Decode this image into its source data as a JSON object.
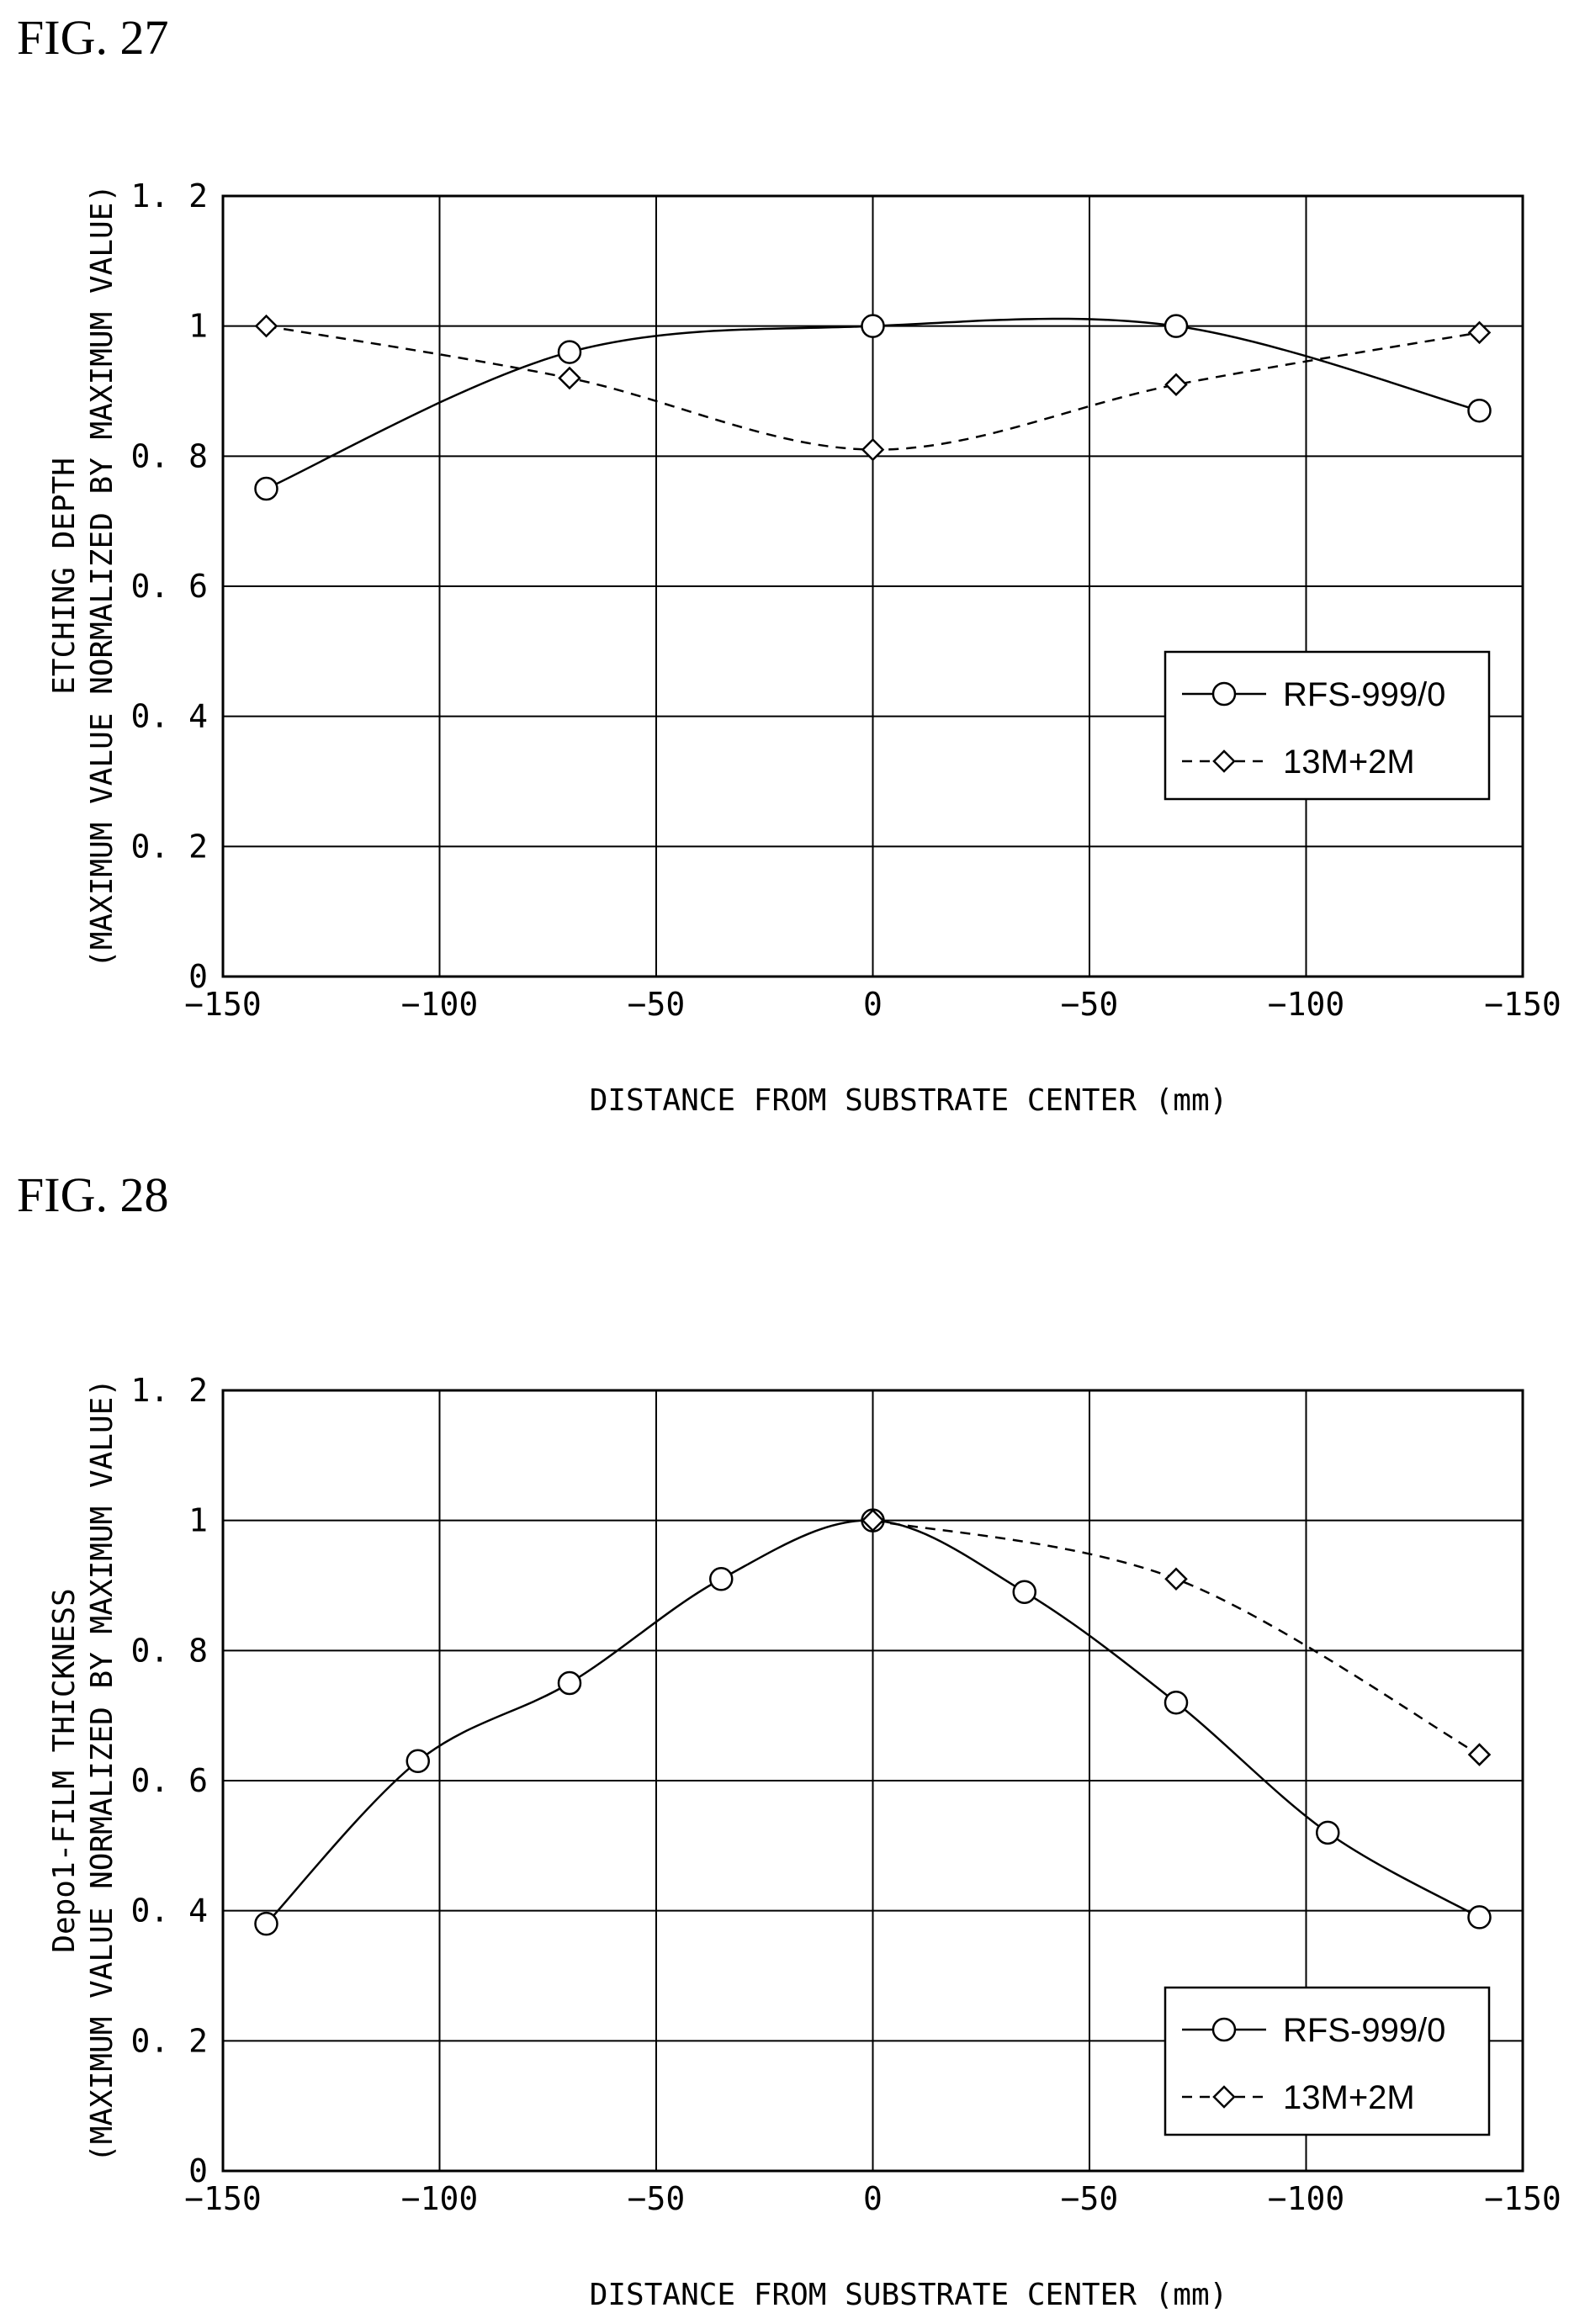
{
  "figures": [
    {
      "fig_label": "FIG. 27",
      "ylabel_line1": "ETCHING DEPTH",
      "ylabel_line2": "(MAXIMUM VALUE NORMALIZED BY MAXIMUM VALUE)",
      "xlabel": "DISTANCE FROM SUBSTRATE CENTER (mm)"
    },
    {
      "fig_label": "FIG. 28",
      "ylabel_line1": "Depo1-FILM THICKNESS",
      "ylabel_line2": "(MAXIMUM VALUE NORMALIZED BY MAXIMUM VALUE)",
      "xlabel": "DISTANCE FROM SUBSTRATE CENTER (mm)"
    }
  ],
  "chart_data": [
    {
      "type": "line",
      "xlabel": "DISTANCE FROM SUBSTRATE CENTER (mm)",
      "ylabel": "ETCHING DEPTH (MAXIMUM VALUE NORMALIZED BY MAXIMUM VALUE)",
      "x_tick_labels": [
        "−150",
        "−100",
        "−50",
        "0",
        "−50",
        "−100",
        "−150"
      ],
      "y_tick_labels": [
        "0",
        "0. 2",
        "0. 4",
        "0. 6",
        "0. 8",
        "1",
        "1. 2"
      ],
      "ylim": [
        0,
        1.2
      ],
      "grid": true,
      "legend_position": "center-right",
      "series": [
        {
          "name": "RFS-999/0",
          "marker": "circle",
          "line_style": "solid",
          "points": [
            [
              -140,
              0.75
            ],
            [
              -70,
              0.96
            ],
            [
              0,
              1.0
            ],
            [
              70,
              1.0
            ],
            [
              140,
              0.87
            ]
          ]
        },
        {
          "name": "13M+2M",
          "marker": "diamond",
          "line_style": "dashed",
          "points": [
            [
              -140,
              1.0
            ],
            [
              -70,
              0.92
            ],
            [
              0,
              0.81
            ],
            [
              70,
              0.91
            ],
            [
              140,
              0.99
            ]
          ]
        }
      ]
    },
    {
      "type": "line",
      "xlabel": "DISTANCE FROM SUBSTRATE CENTER (mm)",
      "ylabel": "Depo1-FILM THICKNESS (MAXIMUM VALUE NORMALIZED BY MAXIMUM VALUE)",
      "x_tick_labels": [
        "−150",
        "−100",
        "−50",
        "0",
        "−50",
        "−100",
        "−150"
      ],
      "y_tick_labels": [
        "0",
        "0. 2",
        "0. 4",
        "0. 6",
        "0. 8",
        "1",
        "1. 2"
      ],
      "ylim": [
        0,
        1.2
      ],
      "grid": true,
      "legend_position": "bottom-right",
      "series": [
        {
          "name": "RFS-999/0",
          "marker": "circle",
          "line_style": "solid",
          "points": [
            [
              -140,
              0.38
            ],
            [
              -105,
              0.63
            ],
            [
              -70,
              0.75
            ],
            [
              -35,
              0.91
            ],
            [
              0,
              1.0
            ],
            [
              35,
              0.89
            ],
            [
              70,
              0.72
            ],
            [
              105,
              0.52
            ],
            [
              140,
              0.39
            ]
          ]
        },
        {
          "name": "13M+2M",
          "marker": "diamond",
          "line_style": "dashed",
          "points": [
            [
              0,
              1.0
            ],
            [
              70,
              0.91
            ],
            [
              140,
              0.64
            ]
          ]
        }
      ]
    }
  ]
}
